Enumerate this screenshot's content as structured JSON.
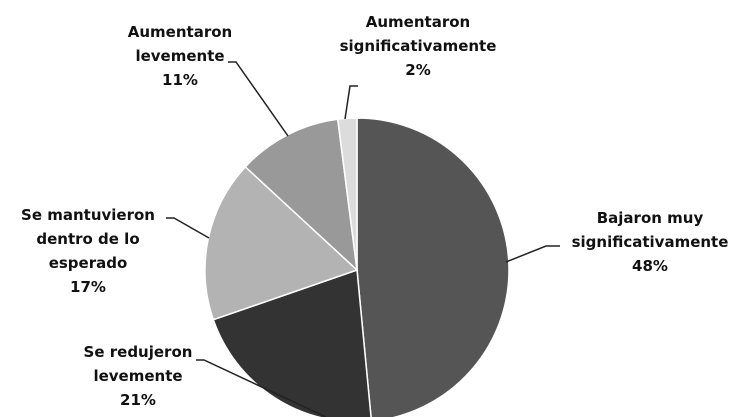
{
  "chart_data": {
    "type": "pie",
    "categories": [
      "Bajaron muy significativamente",
      "Se redujeron levemente",
      "Se mantuvieron dentro de lo esperado",
      "Aumentaron levemente",
      "Aumentaron significativamente"
    ],
    "values": [
      48,
      21,
      17,
      11,
      2
    ],
    "value_labels": [
      "48%",
      "21%",
      "17%",
      "11%",
      "2%"
    ],
    "colors": [
      "#555555",
      "#333333",
      "#b3b3b3",
      "#999999",
      "#dcdcdc"
    ]
  }
}
